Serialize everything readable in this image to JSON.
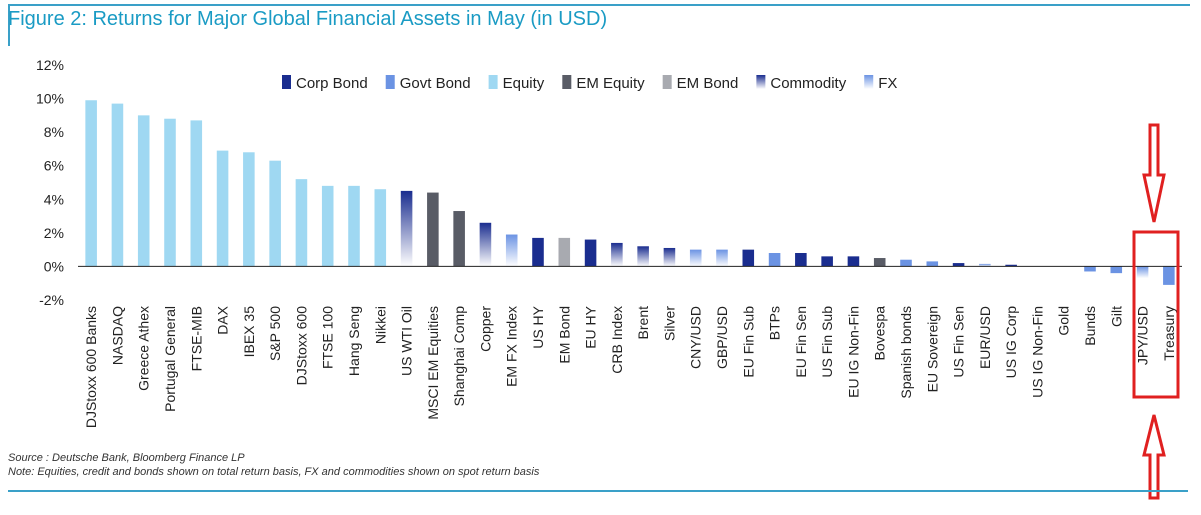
{
  "title": "Figure 2: Returns for Major Global Financial Assets in May (in USD)",
  "footer": {
    "source": "Source : Deutsche Bank, Bloomberg Finance LP",
    "note": "Note: Equities, credit and bonds shown on total return basis, FX and commodities shown on spot return basis"
  },
  "colors": {
    "Corp Bond": "#1a2d8f",
    "Govt Bond": "#6b93e3",
    "Equity": "#9fd8f2",
    "EM Equity": "#595c66",
    "EM Bond": "#a8aab0",
    "Commodity": "#1a2d8f",
    "FX": "#6b93e3",
    "annotation": "#e02020"
  },
  "legend": [
    "Corp Bond",
    "Govt Bond",
    "Equity",
    "EM Equity",
    "EM Bond",
    "Commodity",
    "FX"
  ],
  "chart_data": {
    "type": "bar",
    "ylim": [
      -2,
      12
    ],
    "yticks": [
      -2,
      0,
      2,
      4,
      6,
      8,
      10,
      12
    ],
    "ytick_labels": [
      "-2%",
      "0%",
      "2%",
      "4%",
      "6%",
      "8%",
      "10%",
      "12%"
    ],
    "legend_position": "top-right",
    "categories": [
      "DJStoxx 600 Banks",
      "NASDAQ",
      "Greece Athex",
      "Portugal General",
      "FTSE-MIB",
      "DAX",
      "IBEX 35",
      "S&P 500",
      "DJStoxx 600",
      "FTSE 100",
      "Hang Seng",
      "Nikkei",
      "US WTI Oil",
      "MSCI EM Equities",
      "Shanghai Comp",
      "Copper",
      "EM FX Index",
      "US HY",
      "EM Bond",
      "EU HY",
      "CRB Index",
      "Brent",
      "Silver",
      "CNY/USD",
      "GBP/USD",
      "EU Fin Sub",
      "BTPs",
      "EU Fin Sen",
      "US Fin Sub",
      "EU IG Non-Fin",
      "Bovespa",
      "Spanish bonds",
      "EU Sovereign",
      "US Fin Sen",
      "EUR/USD",
      "US IG Corp",
      "US IG Non-Fin",
      "Gold",
      "Bunds",
      "Gilt",
      "JPY/USD",
      "Treasury"
    ],
    "values": [
      9.9,
      9.7,
      9.0,
      8.8,
      8.7,
      6.9,
      6.8,
      6.3,
      5.2,
      4.8,
      4.8,
      4.6,
      4.5,
      4.4,
      3.3,
      2.6,
      1.9,
      1.7,
      1.7,
      1.6,
      1.4,
      1.2,
      1.1,
      1.0,
      1.0,
      1.0,
      0.8,
      0.8,
      0.6,
      0.6,
      0.5,
      0.4,
      0.3,
      0.2,
      0.15,
      0.1,
      0.0,
      0.0,
      -0.3,
      -0.4,
      -0.7,
      -1.1
    ],
    "asset_class": [
      "Equity",
      "Equity",
      "Equity",
      "Equity",
      "Equity",
      "Equity",
      "Equity",
      "Equity",
      "Equity",
      "Equity",
      "Equity",
      "Equity",
      "Commodity",
      "EM Equity",
      "EM Equity",
      "Commodity",
      "FX",
      "Corp Bond",
      "EM Bond",
      "Corp Bond",
      "Commodity",
      "Commodity",
      "Commodity",
      "FX",
      "FX",
      "Corp Bond",
      "Govt Bond",
      "Corp Bond",
      "Corp Bond",
      "Corp Bond",
      "EM Equity",
      "Govt Bond",
      "Govt Bond",
      "Corp Bond",
      "FX",
      "Corp Bond",
      "Corp Bond",
      "Commodity",
      "Govt Bond",
      "Govt Bond",
      "FX",
      "Govt Bond"
    ]
  }
}
